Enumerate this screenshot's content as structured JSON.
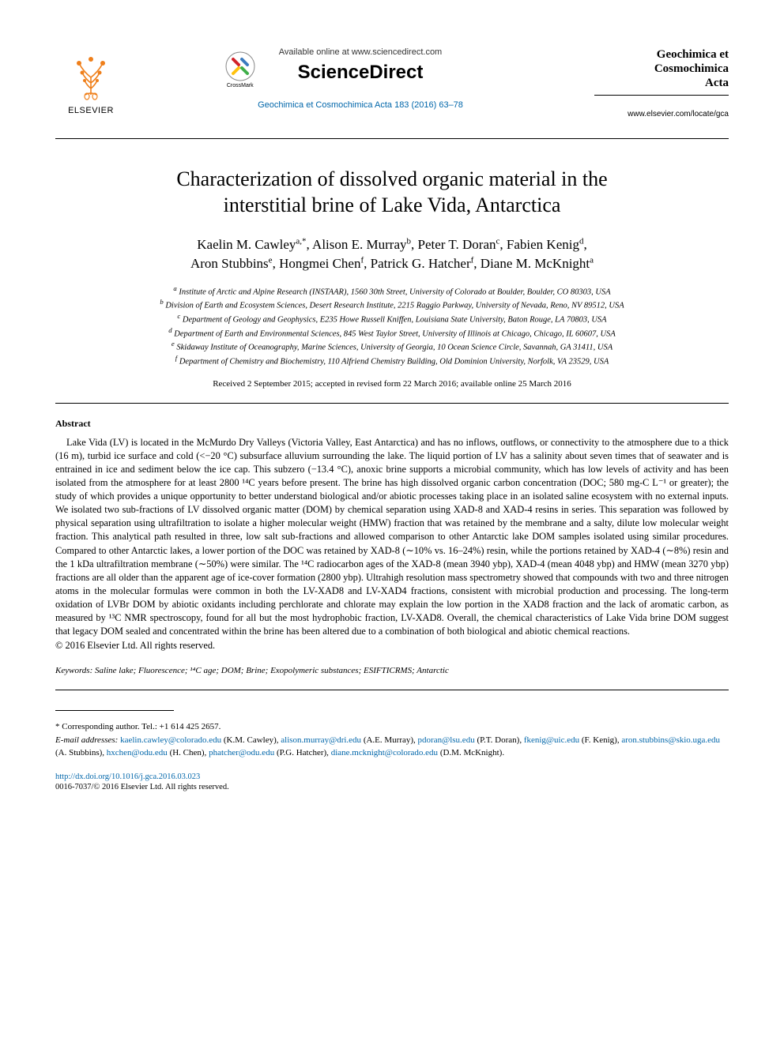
{
  "header": {
    "elsevier_label": "ELSEVIER",
    "available_line": "Available online at www.sciencedirect.com",
    "sciencedirect": "ScienceDirect",
    "citation": "Geochimica et Cosmochimica Acta 183 (2016) 63–78",
    "crossmark_label": "CrossMark",
    "journal_title_l1": "Geochimica et",
    "journal_title_l2": "Cosmochimica",
    "journal_title_l3": "Acta",
    "journal_url": "www.elsevier.com/locate/gca"
  },
  "title_l1": "Characterization of dissolved organic material in the",
  "title_l2": "interstitial brine of Lake Vida, Antarctica",
  "authors_l1": "Kaelin M. Cawley",
  "authors_l1_sup": "a,",
  "authors_l1_ast": "*",
  "authors_l1_b": ", Alison E. Murray",
  "authors_l1_bsup": "b",
  "authors_l1_c": ", Peter T. Doran",
  "authors_l1_csup": "c",
  "authors_l1_d": ", Fabien Kenig",
  "authors_l1_dsup": "d",
  "authors_l1_e": ",",
  "authors_l2_a": "Aron Stubbins",
  "authors_l2_asup": "e",
  "authors_l2_b": ", Hongmei Chen",
  "authors_l2_bsup": "f",
  "authors_l2_c": ", Patrick G. Hatcher",
  "authors_l2_csup": "f",
  "authors_l2_d": ", Diane M. McKnight",
  "authors_l2_dsup": "a",
  "aff_a": "Institute of Arctic and Alpine Research (INSTAAR), 1560 30th Street, University of Colorado at Boulder, Boulder, CO 80303, USA",
  "aff_b": "Division of Earth and Ecosystem Sciences, Desert Research Institute, 2215 Raggio Parkway, University of Nevada, Reno, NV 89512, USA",
  "aff_c": "Department of Geology and Geophysics, E235 Howe Russell Kniffen, Louisiana State University, Baton Rouge, LA 70803, USA",
  "aff_d": "Department of Earth and Environmental Sciences, 845 West Taylor Street, University of Illinois at Chicago, Chicago, IL 60607, USA",
  "aff_e": "Skidaway Institute of Oceanography, Marine Sciences, University of Georgia, 10 Ocean Science Circle, Savannah, GA 31411, USA",
  "aff_f": "Department of Chemistry and Biochemistry, 110 Alfriend Chemistry Building, Old Dominion University, Norfolk, VA 23529, USA",
  "dates": "Received 2 September 2015; accepted in revised form 22 March 2016; available online 25 March 2016",
  "abstract_heading": "Abstract",
  "abstract_body": "Lake Vida (LV) is located in the McMurdo Dry Valleys (Victoria Valley, East Antarctica) and has no inflows, outflows, or connectivity to the atmosphere due to a thick (16 m), turbid ice surface and cold (<−20 °C) subsurface alluvium surrounding the lake. The liquid portion of LV has a salinity about seven times that of seawater and is entrained in ice and sediment below the ice cap. This subzero (−13.4 °C), anoxic brine supports a microbial community, which has low levels of activity and has been isolated from the atmosphere for at least 2800 ¹⁴C years before present. The brine has high dissolved organic carbon concentration (DOC; 580 mg-C L⁻¹ or greater); the study of which provides a unique opportunity to better understand biological and/or abiotic processes taking place in an isolated saline ecosystem with no external inputs. We isolated two sub-fractions of LV dissolved organic matter (DOM) by chemical separation using XAD-8 and XAD-4 resins in series. This separation was followed by physical separation using ultrafiltration to isolate a higher molecular weight (HMW) fraction that was retained by the membrane and a salty, dilute low molecular weight fraction. This analytical path resulted in three, low salt sub-fractions and allowed comparison to other Antarctic lake DOM samples isolated using similar procedures. Compared to other Antarctic lakes, a lower portion of the DOC was retained by XAD-8 (∼10% vs. 16–24%) resin, while the portions retained by XAD-4 (∼8%) resin and the 1 kDa ultrafiltration membrane (∼50%) were similar. The ¹⁴C radiocarbon ages of the XAD-8 (mean 3940 ybp), XAD-4 (mean 4048 ybp) and HMW (mean 3270 ybp) fractions are all older than the apparent age of ice-cover formation (2800 ybp). Ultrahigh resolution mass spectrometry showed that compounds with two and three nitrogen atoms in the molecular formulas were common in both the LV-XAD8 and LV-XAD4 fractions, consistent with microbial production and processing. The long-term oxidation of LVBr DOM by abiotic oxidants including perchlorate and chlorate may explain the low portion in the XAD8 fraction and the lack of aromatic carbon, as measured by ¹³C NMR spectroscopy, found for all but the most hydrophobic fraction, LV-XAD8. Overall, the chemical characteristics of Lake Vida brine DOM suggest that legacy DOM sealed and concentrated within the brine has been altered due to a combination of both biological and abiotic chemical reactions.",
  "copyright": "© 2016 Elsevier Ltd. All rights reserved.",
  "keywords_label": "Keywords:",
  "keywords": " Saline lake; Fluorescence; ¹⁴C age; DOM; Brine; Exopolymeric substances; ESIFTICRMS; Antarctic",
  "corr": "* Corresponding author. Tel.: +1 614 425 2657.",
  "email_label": "E-mail addresses:",
  "emails": [
    {
      "addr": "kaelin.cawley@colorado.edu",
      "who": "(K.M. Cawley)"
    },
    {
      "addr": "alison.murray@dri.edu",
      "who": "(A.E. Murray)"
    },
    {
      "addr": "pdoran@lsu.edu",
      "who": "(P.T. Doran)"
    },
    {
      "addr": "fkenig@uic.edu",
      "who": "(F. Kenig)"
    },
    {
      "addr": "aron.stubbins@skio.uga.edu",
      "who": "(A. Stubbins)"
    },
    {
      "addr": "hxchen@odu.edu",
      "who": "(H. Chen)"
    },
    {
      "addr": "phatcher@odu.edu",
      "who": "(P.G. Hatcher)"
    },
    {
      "addr": "diane.mcknight@colorado.edu",
      "who": "(D.M. McKnight)"
    }
  ],
  "doi": "http://dx.doi.org/10.1016/j.gca.2016.03.023",
  "issn": "0016-7037/© 2016 Elsevier Ltd. All rights reserved.",
  "colors": {
    "link": "#0066aa",
    "text": "#000000",
    "bg": "#ffffff",
    "elsevier_orange": "#ef7f1a",
    "crossmark_red": "#d2232a",
    "crossmark_yellow": "#ffc20e",
    "crossmark_blue": "#3b7bbf",
    "crossmark_green": "#3fae49"
  }
}
